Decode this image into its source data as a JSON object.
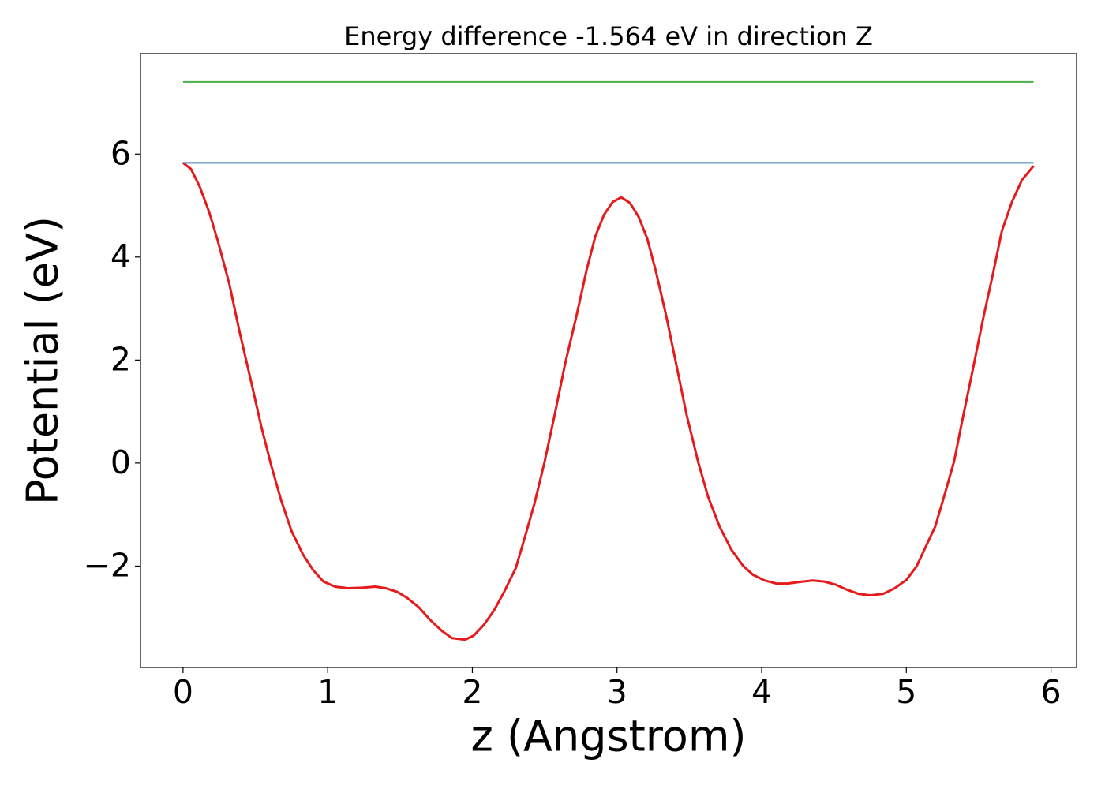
{
  "chart_data": {
    "type": "line",
    "title": "Energy difference -1.564 eV in direction Z",
    "xlabel": "z (Angstrom)",
    "ylabel": "Potential (eV)",
    "xlim": [
      -0.294,
      6.177
    ],
    "ylim": [
      -3.97,
      7.95
    ],
    "xticks": [
      0,
      1,
      2,
      3,
      4,
      5,
      6
    ],
    "yticks": [
      {
        "value": -2,
        "label": "−2"
      },
      0,
      2,
      4,
      6
    ],
    "grid": false,
    "series": [
      {
        "color": "#e41a1c",
        "x": [
          0,
          0.055,
          0.115,
          0.18,
          0.24,
          0.32,
          0.39,
          0.47,
          0.54,
          0.61,
          0.68,
          0.75,
          0.83,
          0.9,
          0.97,
          1.05,
          1.14,
          1.24,
          1.33,
          1.4,
          1.48,
          1.55,
          1.63,
          1.71,
          1.79,
          1.86,
          1.95,
          2.01,
          2.08,
          2.15,
          2.22,
          2.3,
          2.36,
          2.43,
          2.5,
          2.57,
          2.64,
          2.72,
          2.79,
          2.85,
          2.91,
          2.97,
          3.03,
          3.09,
          3.15,
          3.21,
          3.27,
          3.34,
          3.41,
          3.48,
          3.56,
          3.63,
          3.71,
          3.79,
          3.87,
          3.94,
          4.02,
          4.1,
          4.18,
          4.26,
          4.35,
          4.43,
          4.51,
          4.59,
          4.67,
          4.75,
          4.84,
          4.92,
          5.0,
          5.07,
          5.13,
          5.2,
          5.26,
          5.33,
          5.39,
          5.46,
          5.53,
          5.6,
          5.66,
          5.73,
          5.8,
          5.88
        ],
        "values": [
          5.83,
          5.71,
          5.37,
          4.88,
          4.32,
          3.48,
          2.56,
          1.59,
          0.72,
          -0.05,
          -0.74,
          -1.32,
          -1.78,
          -2.08,
          -2.3,
          -2.4,
          -2.43,
          -2.42,
          -2.4,
          -2.43,
          -2.5,
          -2.62,
          -2.8,
          -3.05,
          -3.26,
          -3.4,
          -3.43,
          -3.35,
          -3.14,
          -2.86,
          -2.5,
          -2.04,
          -1.47,
          -0.78,
          0.03,
          0.95,
          1.91,
          2.86,
          3.75,
          4.4,
          4.82,
          5.07,
          5.16,
          5.05,
          4.78,
          4.35,
          3.71,
          2.86,
          1.91,
          0.95,
          0.03,
          -0.66,
          -1.24,
          -1.68,
          -1.99,
          -2.17,
          -2.28,
          -2.34,
          -2.34,
          -2.31,
          -2.28,
          -2.3,
          -2.36,
          -2.46,
          -2.54,
          -2.57,
          -2.54,
          -2.43,
          -2.27,
          -2.01,
          -1.65,
          -1.23,
          -0.66,
          0.03,
          0.87,
          1.82,
          2.79,
          3.69,
          4.5,
          5.07,
          5.5,
          5.77
        ]
      },
      {
        "color": "#3b7fb5",
        "x": [
          0,
          5.88
        ],
        "values": [
          5.83,
          5.83
        ]
      },
      {
        "color": "#4daf4a",
        "x": [
          0,
          5.88
        ],
        "values": [
          7.4,
          7.4
        ]
      }
    ]
  }
}
